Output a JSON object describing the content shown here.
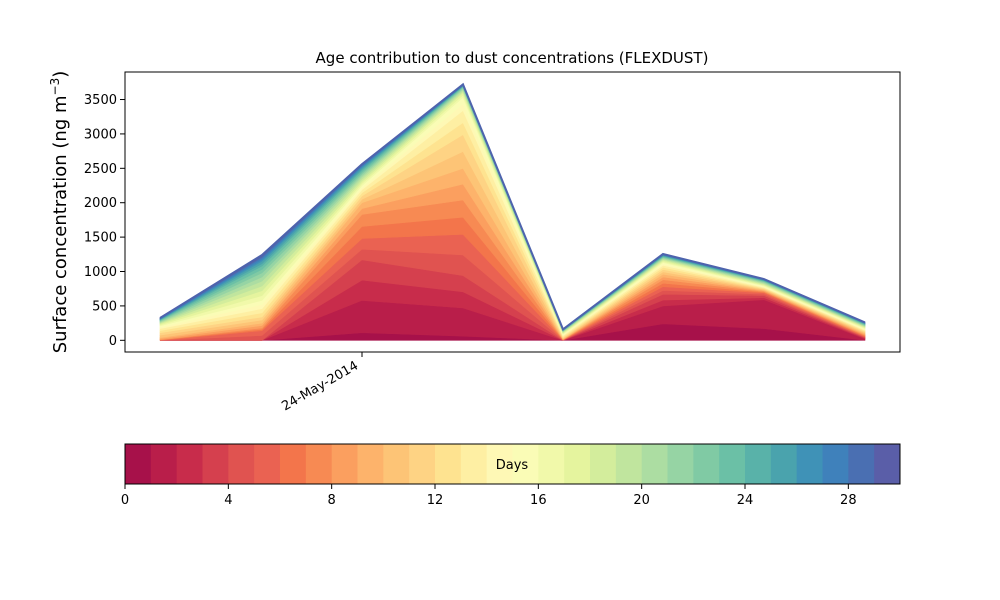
{
  "chart_data": {
    "type": "area",
    "title": "Age contribution to dust concentrations (FLEXDUST)",
    "ylabel": "Surface concentration (ng m",
    "ylabel_sup": "−3",
    "ylabel_close": ")",
    "xlabel": "",
    "x_tick_label": "24-May-2014",
    "yticks": [
      0,
      500,
      1000,
      1500,
      2000,
      2500,
      3000,
      3500
    ],
    "ylim": [
      -170,
      3900
    ],
    "x": [
      0,
      1,
      2,
      3,
      4,
      5,
      6,
      7
    ],
    "ages": 30,
    "anchors": [
      {
        "age": 0,
        "values": [
          0,
          0,
          0,
          0,
          0,
          0,
          0,
          0
        ]
      },
      {
        "age": 1,
        "values": [
          0,
          0,
          110,
          60,
          0,
          240,
          170,
          0
        ]
      },
      {
        "age": 2,
        "values": [
          0,
          0,
          580,
          470,
          0,
          500,
          590,
          20
        ]
      },
      {
        "age": 4,
        "values": [
          0,
          0,
          1170,
          940,
          0,
          670,
          650,
          40
        ]
      },
      {
        "age": 6,
        "values": [
          0,
          140,
          1480,
          1540,
          5,
          780,
          690,
          55
        ]
      },
      {
        "age": 8,
        "values": [
          10,
          180,
          1830,
          2040,
          10,
          880,
          710,
          75
        ]
      },
      {
        "age": 10,
        "values": [
          40,
          250,
          2000,
          2500,
          20,
          960,
          730,
          100
        ]
      },
      {
        "age": 12,
        "values": [
          110,
          340,
          2100,
          2990,
          40,
          1030,
          750,
          125
        ]
      },
      {
        "age": 14,
        "values": [
          170,
          460,
          2190,
          3340,
          70,
          1090,
          770,
          150
        ]
      },
      {
        "age": 16,
        "values": [
          210,
          580,
          2250,
          3530,
          90,
          1130,
          790,
          170
        ]
      },
      {
        "age": 18,
        "values": [
          240,
          720,
          2310,
          3600,
          110,
          1160,
          810,
          190
        ]
      },
      {
        "age": 20,
        "values": [
          260,
          860,
          2370,
          3640,
          125,
          1185,
          830,
          205
        ]
      },
      {
        "age": 22,
        "values": [
          280,
          980,
          2420,
          3670,
          135,
          1205,
          850,
          220
        ]
      },
      {
        "age": 24,
        "values": [
          295,
          1080,
          2470,
          3690,
          145,
          1220,
          865,
          235
        ]
      },
      {
        "age": 26,
        "values": [
          305,
          1150,
          2510,
          3700,
          150,
          1235,
          875,
          245
        ]
      },
      {
        "age": 28,
        "values": [
          315,
          1200,
          2540,
          3710,
          155,
          1245,
          885,
          255
        ]
      },
      {
        "age": 30,
        "values": [
          325,
          1240,
          2560,
          3720,
          160,
          1255,
          890,
          260
        ]
      }
    ],
    "colorbar": {
      "label": "Days",
      "range": [
        0,
        30
      ],
      "ticks": [
        0,
        4,
        8,
        12,
        16,
        20,
        24,
        28
      ],
      "colors": [
        "#a7114a",
        "#b91e4a",
        "#c82c4b",
        "#d5404e",
        "#e05350",
        "#ea6252",
        "#f3754b",
        "#f78a53",
        "#fb9f5f",
        "#fdb36b",
        "#fdc476",
        "#fed384",
        "#fee390",
        "#feefa3",
        "#fef8b5",
        "#fafcb6",
        "#f1f9aa",
        "#e5f49e",
        "#d3ed9c",
        "#c0e59e",
        "#acdda2",
        "#96d4a4",
        "#80caa4",
        "#6bc0a6",
        "#59b2a9",
        "#4aa3ad",
        "#3f92b7",
        "#3f81bb",
        "#4a6fb2",
        "#5a5ea8"
      ]
    }
  }
}
